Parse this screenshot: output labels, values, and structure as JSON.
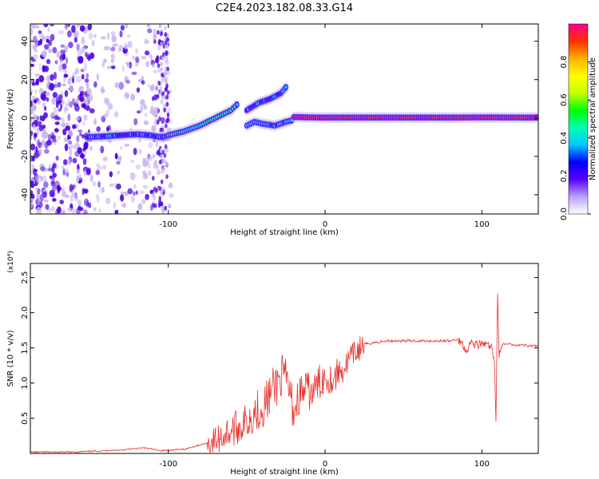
{
  "title": "C2E4.2023.182.08.33.G14",
  "colors": {
    "snr_line": "#e8312b",
    "heat_start": "#c8b8f0",
    "heat_mid": "#4b00e0",
    "colorbar_stops": [
      "#ffffff",
      "#b9a2ff",
      "#5a00ff",
      "#0000ff",
      "#00c8ff",
      "#00ffb0",
      "#00ff00",
      "#c8ff00",
      "#ffff00",
      "#ffb000",
      "#ff3000",
      "#ff0090"
    ]
  },
  "chart_data": [
    {
      "type": "heatmap",
      "title": "C2E4.2023.182.08.33.G14",
      "xlabel": "Height of straight line (km)",
      "ylabel": "Frequency (Hz)",
      "xlim": [
        -188,
        136
      ],
      "ylim": [
        -50,
        49
      ],
      "x_ticks": [
        "-100",
        "0",
        "100"
      ],
      "x_tick_values": [
        -100,
        0,
        100
      ],
      "y_ticks": [
        "-40",
        "-20",
        "0",
        "20",
        "40"
      ],
      "y_tick_values": [
        -40,
        -20,
        0,
        20,
        40
      ],
      "colorbar": {
        "label": "Normalized spectral amplitude",
        "range": [
          0.0,
          1.0
        ],
        "ticks": [
          "0.0",
          "0.2",
          "0.4",
          "0.6",
          "0.8"
        ],
        "tick_values": [
          0.0,
          0.2,
          0.4,
          0.6,
          0.8
        ]
      },
      "traces": [
        {
          "x": [
            -152,
            -140,
            -130,
            -120,
            -112,
            -105,
            -98
          ],
          "y": [
            -10,
            -9.5,
            -9,
            -8.5,
            -9,
            -10,
            -9
          ],
          "amplitude": 0.3
        },
        {
          "x": [
            -100,
            -90,
            -80,
            -70,
            -60,
            -55
          ],
          "y": [
            -9,
            -7,
            -4,
            0,
            4,
            8
          ],
          "amplitude": 0.45
        },
        {
          "x": [
            -50,
            -42,
            -35,
            -28,
            -24
          ],
          "y": [
            4,
            8,
            10,
            13,
            17
          ],
          "amplitude": 0.3
        },
        {
          "x": [
            -50,
            -45,
            -40,
            -32,
            -25,
            -20
          ],
          "y": [
            -4,
            -2,
            -3,
            -4,
            -2,
            -1
          ],
          "amplitude": 0.35
        },
        {
          "x": [
            -20,
            -10,
            0,
            20,
            50,
            80,
            100,
            136
          ],
          "y": [
            0.5,
            0.3,
            0.2,
            0.2,
            0.2,
            0.2,
            0.3,
            0.2
          ],
          "amplitude": 0.95
        }
      ]
    },
    {
      "type": "line",
      "xlabel": "Height of straight line (km)",
      "ylabel": "SNR (10 * v/v)",
      "y_scale_note": "(x10⁴)",
      "xlim": [
        -188,
        136
      ],
      "ylim": [
        0,
        2.7
      ],
      "x_ticks": [
        "-100",
        "0",
        "100"
      ],
      "x_tick_values": [
        -100,
        0,
        100
      ],
      "y_ticks": [
        "0.5",
        "1.0",
        "1.5",
        "2.0",
        "2.5"
      ],
      "y_tick_values": [
        0.5,
        1.0,
        1.5,
        2.0,
        2.5
      ],
      "series": [
        {
          "x": [
            -188,
            -160,
            -130,
            -115,
            -105,
            -90,
            -80,
            -70,
            -62,
            -55,
            -50,
            -45,
            -40,
            -36,
            -32,
            -28,
            -24,
            -20,
            -16,
            -12,
            -8,
            -4,
            0,
            5,
            8,
            12,
            16,
            20,
            25,
            30,
            40,
            50,
            60,
            70,
            80,
            85,
            88,
            90,
            93,
            96,
            100,
            103,
            106,
            108,
            109,
            110,
            111,
            113,
            118,
            126,
            136
          ],
          "y": [
            0.02,
            0.02,
            0.05,
            0.08,
            0.04,
            0.06,
            0.12,
            0.18,
            0.3,
            0.38,
            0.45,
            0.6,
            0.65,
            0.8,
            0.95,
            1.1,
            1.0,
            0.6,
            0.85,
            0.9,
            0.85,
            1.0,
            1.1,
            1.05,
            1.15,
            1.2,
            1.35,
            1.45,
            1.55,
            1.57,
            1.6,
            1.6,
            1.6,
            1.6,
            1.6,
            1.62,
            1.55,
            1.45,
            1.58,
            1.55,
            1.55,
            1.55,
            1.5,
            1.3,
            0.5,
            2.3,
            1.4,
            1.55,
            1.55,
            1.54,
            1.52
          ]
        }
      ]
    }
  ]
}
